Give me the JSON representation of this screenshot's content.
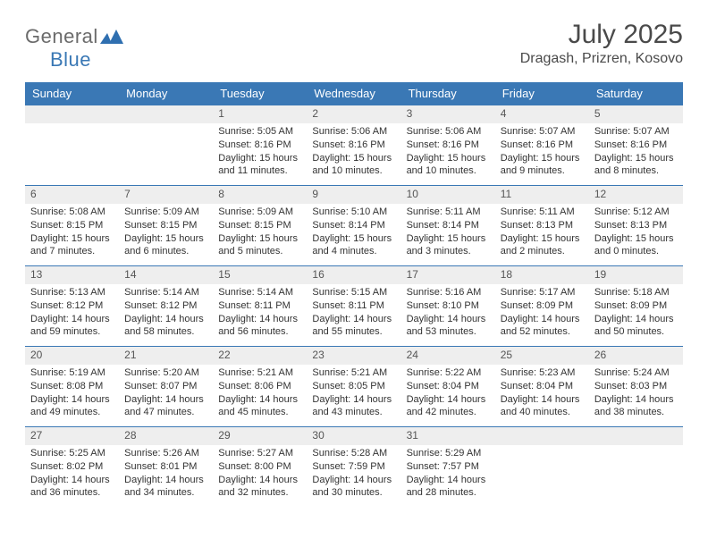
{
  "brand": {
    "line1": "General",
    "line2": "Blue",
    "shape_color": "#2f6fb0"
  },
  "title": {
    "month_year": "July 2025",
    "location": "Dragash, Prizren, Kosovo"
  },
  "colors": {
    "header_bg": "#3a78b5",
    "header_text": "#ffffff",
    "band_bg": "#eeeeee",
    "band_border": "#3a78b5",
    "body_text": "#333333",
    "title_text": "#4a4a4a"
  },
  "weekdays": [
    "Sunday",
    "Monday",
    "Tuesday",
    "Wednesday",
    "Thursday",
    "Friday",
    "Saturday"
  ],
  "weeks": [
    [
      {
        "empty": true
      },
      {
        "empty": true
      },
      {
        "n": "1",
        "sunrise": "Sunrise: 5:05 AM",
        "sunset": "Sunset: 8:16 PM",
        "day1": "Daylight: 15 hours",
        "day2": "and 11 minutes."
      },
      {
        "n": "2",
        "sunrise": "Sunrise: 5:06 AM",
        "sunset": "Sunset: 8:16 PM",
        "day1": "Daylight: 15 hours",
        "day2": "and 10 minutes."
      },
      {
        "n": "3",
        "sunrise": "Sunrise: 5:06 AM",
        "sunset": "Sunset: 8:16 PM",
        "day1": "Daylight: 15 hours",
        "day2": "and 10 minutes."
      },
      {
        "n": "4",
        "sunrise": "Sunrise: 5:07 AM",
        "sunset": "Sunset: 8:16 PM",
        "day1": "Daylight: 15 hours",
        "day2": "and 9 minutes."
      },
      {
        "n": "5",
        "sunrise": "Sunrise: 5:07 AM",
        "sunset": "Sunset: 8:16 PM",
        "day1": "Daylight: 15 hours",
        "day2": "and 8 minutes."
      }
    ],
    [
      {
        "n": "6",
        "sunrise": "Sunrise: 5:08 AM",
        "sunset": "Sunset: 8:15 PM",
        "day1": "Daylight: 15 hours",
        "day2": "and 7 minutes."
      },
      {
        "n": "7",
        "sunrise": "Sunrise: 5:09 AM",
        "sunset": "Sunset: 8:15 PM",
        "day1": "Daylight: 15 hours",
        "day2": "and 6 minutes."
      },
      {
        "n": "8",
        "sunrise": "Sunrise: 5:09 AM",
        "sunset": "Sunset: 8:15 PM",
        "day1": "Daylight: 15 hours",
        "day2": "and 5 minutes."
      },
      {
        "n": "9",
        "sunrise": "Sunrise: 5:10 AM",
        "sunset": "Sunset: 8:14 PM",
        "day1": "Daylight: 15 hours",
        "day2": "and 4 minutes."
      },
      {
        "n": "10",
        "sunrise": "Sunrise: 5:11 AM",
        "sunset": "Sunset: 8:14 PM",
        "day1": "Daylight: 15 hours",
        "day2": "and 3 minutes."
      },
      {
        "n": "11",
        "sunrise": "Sunrise: 5:11 AM",
        "sunset": "Sunset: 8:13 PM",
        "day1": "Daylight: 15 hours",
        "day2": "and 2 minutes."
      },
      {
        "n": "12",
        "sunrise": "Sunrise: 5:12 AM",
        "sunset": "Sunset: 8:13 PM",
        "day1": "Daylight: 15 hours",
        "day2": "and 0 minutes."
      }
    ],
    [
      {
        "n": "13",
        "sunrise": "Sunrise: 5:13 AM",
        "sunset": "Sunset: 8:12 PM",
        "day1": "Daylight: 14 hours",
        "day2": "and 59 minutes."
      },
      {
        "n": "14",
        "sunrise": "Sunrise: 5:14 AM",
        "sunset": "Sunset: 8:12 PM",
        "day1": "Daylight: 14 hours",
        "day2": "and 58 minutes."
      },
      {
        "n": "15",
        "sunrise": "Sunrise: 5:14 AM",
        "sunset": "Sunset: 8:11 PM",
        "day1": "Daylight: 14 hours",
        "day2": "and 56 minutes."
      },
      {
        "n": "16",
        "sunrise": "Sunrise: 5:15 AM",
        "sunset": "Sunset: 8:11 PM",
        "day1": "Daylight: 14 hours",
        "day2": "and 55 minutes."
      },
      {
        "n": "17",
        "sunrise": "Sunrise: 5:16 AM",
        "sunset": "Sunset: 8:10 PM",
        "day1": "Daylight: 14 hours",
        "day2": "and 53 minutes."
      },
      {
        "n": "18",
        "sunrise": "Sunrise: 5:17 AM",
        "sunset": "Sunset: 8:09 PM",
        "day1": "Daylight: 14 hours",
        "day2": "and 52 minutes."
      },
      {
        "n": "19",
        "sunrise": "Sunrise: 5:18 AM",
        "sunset": "Sunset: 8:09 PM",
        "day1": "Daylight: 14 hours",
        "day2": "and 50 minutes."
      }
    ],
    [
      {
        "n": "20",
        "sunrise": "Sunrise: 5:19 AM",
        "sunset": "Sunset: 8:08 PM",
        "day1": "Daylight: 14 hours",
        "day2": "and 49 minutes."
      },
      {
        "n": "21",
        "sunrise": "Sunrise: 5:20 AM",
        "sunset": "Sunset: 8:07 PM",
        "day1": "Daylight: 14 hours",
        "day2": "and 47 minutes."
      },
      {
        "n": "22",
        "sunrise": "Sunrise: 5:21 AM",
        "sunset": "Sunset: 8:06 PM",
        "day1": "Daylight: 14 hours",
        "day2": "and 45 minutes."
      },
      {
        "n": "23",
        "sunrise": "Sunrise: 5:21 AM",
        "sunset": "Sunset: 8:05 PM",
        "day1": "Daylight: 14 hours",
        "day2": "and 43 minutes."
      },
      {
        "n": "24",
        "sunrise": "Sunrise: 5:22 AM",
        "sunset": "Sunset: 8:04 PM",
        "day1": "Daylight: 14 hours",
        "day2": "and 42 minutes."
      },
      {
        "n": "25",
        "sunrise": "Sunrise: 5:23 AM",
        "sunset": "Sunset: 8:04 PM",
        "day1": "Daylight: 14 hours",
        "day2": "and 40 minutes."
      },
      {
        "n": "26",
        "sunrise": "Sunrise: 5:24 AM",
        "sunset": "Sunset: 8:03 PM",
        "day1": "Daylight: 14 hours",
        "day2": "and 38 minutes."
      }
    ],
    [
      {
        "n": "27",
        "sunrise": "Sunrise: 5:25 AM",
        "sunset": "Sunset: 8:02 PM",
        "day1": "Daylight: 14 hours",
        "day2": "and 36 minutes."
      },
      {
        "n": "28",
        "sunrise": "Sunrise: 5:26 AM",
        "sunset": "Sunset: 8:01 PM",
        "day1": "Daylight: 14 hours",
        "day2": "and 34 minutes."
      },
      {
        "n": "29",
        "sunrise": "Sunrise: 5:27 AM",
        "sunset": "Sunset: 8:00 PM",
        "day1": "Daylight: 14 hours",
        "day2": "and 32 minutes."
      },
      {
        "n": "30",
        "sunrise": "Sunrise: 5:28 AM",
        "sunset": "Sunset: 7:59 PM",
        "day1": "Daylight: 14 hours",
        "day2": "and 30 minutes."
      },
      {
        "n": "31",
        "sunrise": "Sunrise: 5:29 AM",
        "sunset": "Sunset: 7:57 PM",
        "day1": "Daylight: 14 hours",
        "day2": "and 28 minutes."
      },
      {
        "empty": true
      },
      {
        "empty": true
      }
    ]
  ]
}
